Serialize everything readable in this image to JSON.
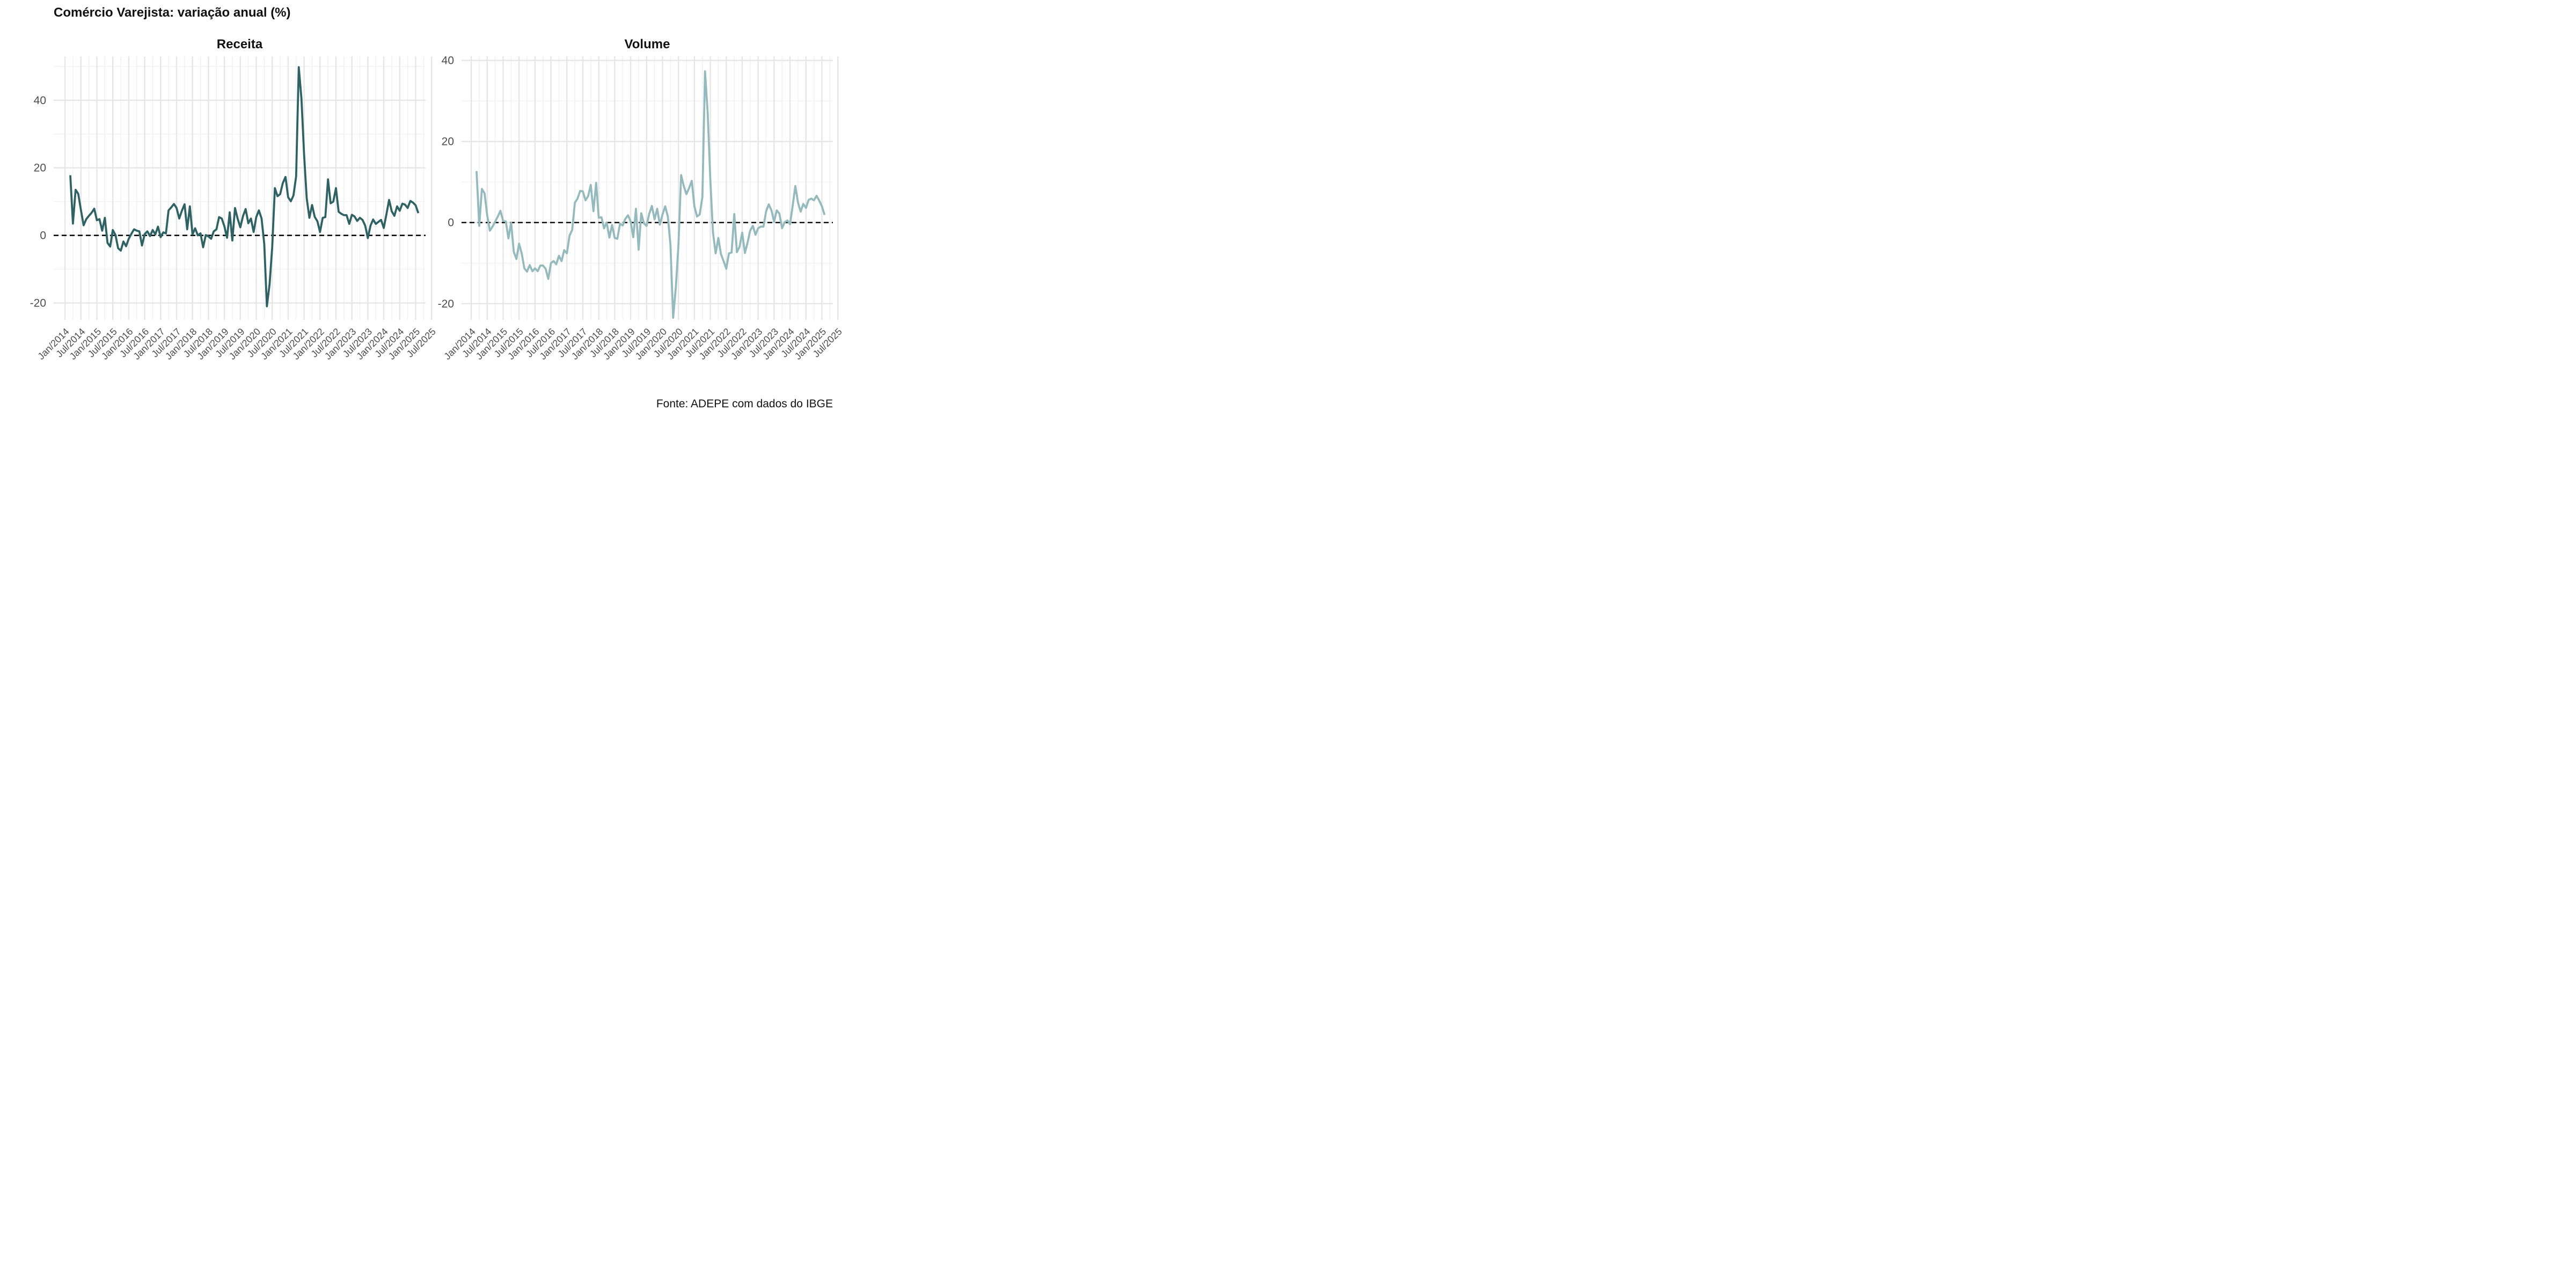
{
  "title": "Comércio Varejista: variação anual (%)",
  "caption": "Fonte: ADEPE com dados do IBGE",
  "chart_data": [
    {
      "type": "line",
      "title": "Receita",
      "color": "#2f6264",
      "x_start": "Mar/2014",
      "x_step": "month",
      "x_ticks": [
        "Jan/2014",
        "Jul/2014",
        "Jan/2015",
        "Jul/2015",
        "Jan/2016",
        "Jul/2016",
        "Jan/2017",
        "Jul/2017",
        "Jan/2018",
        "Jul/2018",
        "Jan/2019",
        "Jul/2019",
        "Jan/2020",
        "Jul/2020",
        "Jan/2021",
        "Jul/2021",
        "Jan/2022",
        "Jul/2022",
        "Jan/2023",
        "Jul/2023",
        "Jan/2024",
        "Jul/2024",
        "Jan/2025",
        "Jul/2025"
      ],
      "y_ticks": [
        -20,
        0,
        20,
        40
      ],
      "ylim": [
        -25,
        53
      ],
      "reference_line": 0,
      "values": [
        17.8,
        3.5,
        13.5,
        12.3,
        7.5,
        3.0,
        4.8,
        5.8,
        6.7,
        7.9,
        4.5,
        4.8,
        1.4,
        5.2,
        -2.2,
        -3.3,
        1.6,
        0.1,
        -3.8,
        -4.5,
        -1.8,
        -3.2,
        -1.0,
        0.5,
        1.8,
        1.4,
        1.2,
        -3.0,
        0.4,
        1.2,
        -0.2,
        1.6,
        0.3,
        2.6,
        -0.5,
        0.9,
        0.6,
        7.4,
        8.3,
        9.3,
        8.1,
        5.0,
        7.3,
        9.2,
        1.8,
        8.6,
        0.3,
        2.1,
        0.0,
        0.6,
        -3.5,
        0.1,
        -0.3,
        -1.0,
        1.2,
        1.8,
        5.4,
        5.0,
        2.7,
        -0.7,
        6.8,
        -1.5,
        8.1,
        4.9,
        2.4,
        5.7,
        7.8,
        3.6,
        5.0,
        1.0,
        5.4,
        7.4,
        5.0,
        -2.5,
        -21.0,
        -14.5,
        -3.5,
        14.0,
        11.6,
        12.2,
        15.5,
        17.3,
        11.3,
        10.1,
        11.8,
        17.5,
        49.8,
        40.5,
        24.0,
        11.0,
        5.2,
        9.0,
        5.5,
        4.2,
        1.0,
        5.2,
        5.4,
        16.6,
        9.5,
        10.0,
        14.0,
        7.0,
        6.4,
        6.0,
        6.0,
        3.4,
        6.1,
        5.6,
        4.3,
        5.2,
        4.6,
        2.9,
        -0.8,
        2.9,
        4.7,
        3.4,
        4.0,
        4.6,
        2.2,
        6.3,
        10.5,
        7.1,
        5.8,
        8.6,
        7.3,
        9.4,
        9.1,
        8.1,
        10.2,
        9.7,
        8.9,
        6.6
      ]
    },
    {
      "type": "line",
      "title": "Volume",
      "color": "#95babd",
      "x_start": "Mar/2014",
      "x_step": "month",
      "x_ticks": [
        "Jan/2014",
        "Jul/2014",
        "Jan/2015",
        "Jul/2015",
        "Jan/2016",
        "Jul/2016",
        "Jan/2017",
        "Jul/2017",
        "Jan/2018",
        "Jul/2018",
        "Jan/2019",
        "Jul/2019",
        "Jan/2020",
        "Jul/2020",
        "Jan/2021",
        "Jul/2021",
        "Jan/2022",
        "Jul/2022",
        "Jan/2023",
        "Jul/2023",
        "Jan/2024",
        "Jul/2024",
        "Jan/2025",
        "Jul/2025"
      ],
      "y_ticks": [
        -20,
        0,
        20,
        40
      ],
      "ylim": [
        -24,
        41
      ],
      "reference_line": 0,
      "values": [
        12.7,
        -0.8,
        8.3,
        7.2,
        1.8,
        -2.0,
        -1.0,
        0.2,
        1.5,
        2.9,
        0.4,
        0.3,
        -3.9,
        0.0,
        -7.2,
        -9.0,
        -5.2,
        -7.6,
        -11.3,
        -12.1,
        -10.5,
        -12.0,
        -11.3,
        -12.0,
        -10.6,
        -10.6,
        -11.4,
        -13.9,
        -10.0,
        -9.5,
        -10.3,
        -8.2,
        -9.5,
        -6.8,
        -7.6,
        -3.2,
        -1.8,
        4.9,
        5.9,
        7.8,
        7.7,
        5.5,
        6.5,
        9.3,
        2.8,
        9.8,
        1.2,
        1.3,
        -1.4,
        0.0,
        -3.7,
        -0.6,
        -3.8,
        -4.0,
        -0.3,
        -0.7,
        0.9,
        1.8,
        0.3,
        -3.6,
        3.4,
        -6.7,
        2.3,
        -0.2,
        -0.8,
        2.2,
        4.1,
        0.8,
        3.4,
        -0.5,
        2.0,
        4.0,
        1.5,
        -5.5,
        -23.5,
        -16.0,
        -5.5,
        11.7,
        9.0,
        7.0,
        8.5,
        10.3,
        4.0,
        1.5,
        2.0,
        6.3,
        37.3,
        27.0,
        10.5,
        -2.4,
        -7.6,
        -3.8,
        -7.8,
        -9.5,
        -11.4,
        -7.6,
        -7.4,
        2.1,
        -7.3,
        -6.0,
        -2.5,
        -7.5,
        -5.0,
        -2.0,
        -0.8,
        -3.0,
        -1.4,
        -1.0,
        -1.0,
        2.8,
        4.5,
        3.0,
        0.2,
        3.0,
        2.2,
        -1.4,
        0.1,
        0.5,
        -0.4,
        4.2,
        9.0,
        4.9,
        2.7,
        4.6,
        3.6,
        5.6,
        5.9,
        5.5,
        6.6,
        5.4,
        4.0,
        1.9
      ]
    }
  ]
}
